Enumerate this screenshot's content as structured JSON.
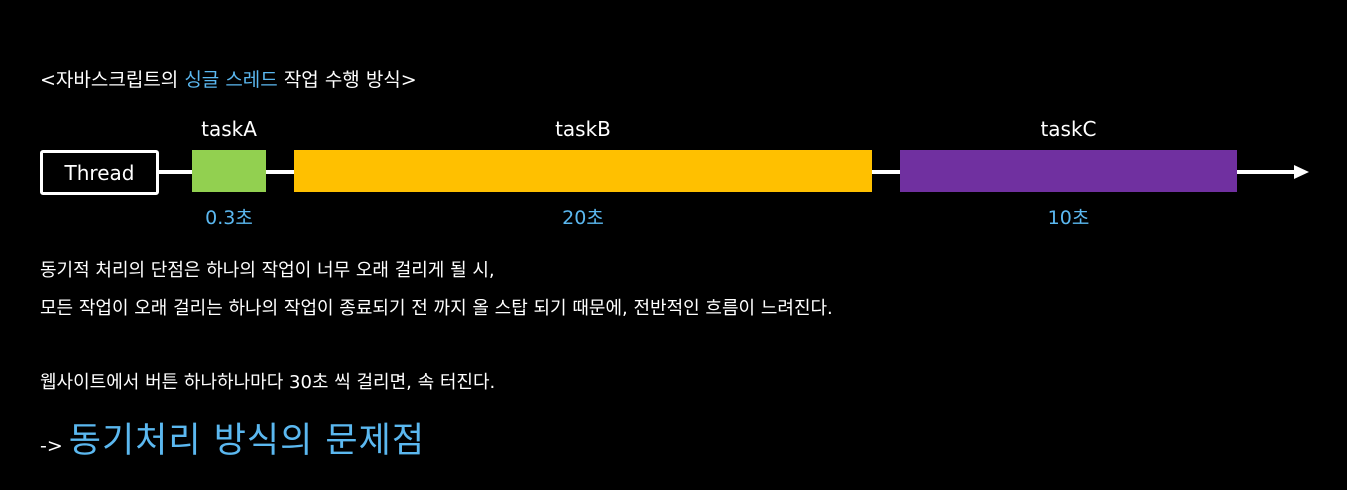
{
  "colors": {
    "background": "#000000",
    "accent": "#5bb8f0",
    "text": "#ffffff",
    "taskA": "#92d050",
    "taskB": "#ffc000",
    "taskC": "#7030a0"
  },
  "title": {
    "prefix": "<자바스크립트의 ",
    "highlight": "싱글 스레드",
    "suffix": "  작업 수행 방식>"
  },
  "timeline": {
    "thread_label": "Thread",
    "tasks": [
      {
        "name": "taskA",
        "duration": "0.3초",
        "seconds": 0.3
      },
      {
        "name": "taskB",
        "duration": "20초",
        "seconds": 20
      },
      {
        "name": "taskC",
        "duration": "10초",
        "seconds": 10
      }
    ]
  },
  "description": {
    "line1": "동기적 처리의 단점은 하나의 작업이 너무 오래 걸리게 될 시,",
    "line2": "모든 작업이 오래 걸리는 하나의 작업이 종료되기 전 까지 올 스탑 되기 때문에, 전반적인 흐름이 느려진다.",
    "line3": "웹사이트에서 버튼 하나하나마다 30초 씩 걸리면, 속 터진다."
  },
  "conclusion": {
    "prefix": "->",
    "text": "동기처리 방식의 문제점"
  }
}
